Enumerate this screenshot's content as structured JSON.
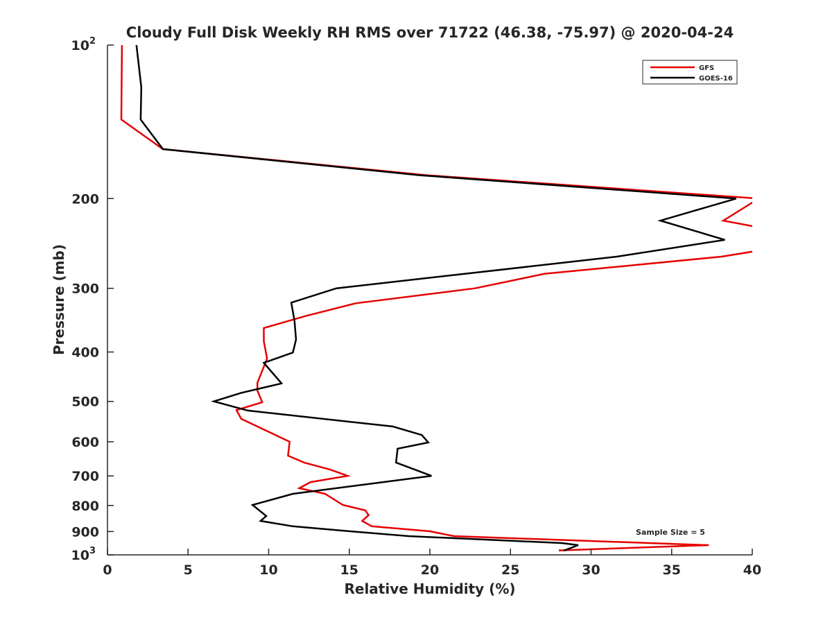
{
  "chart_data": {
    "type": "line",
    "title": "Cloudy Full Disk Weekly RH RMS over 71722 (46.38, -75.97) @ 2020-04-24",
    "xlabel": "Relative Humidity (%)",
    "ylabel": "Pressure (mb)",
    "xlim": [
      0,
      40
    ],
    "ylim": [
      100,
      1000
    ],
    "yscale": "log",
    "y_reversed": true,
    "x_ticks": [
      "0",
      "5",
      "10",
      "15",
      "20",
      "25",
      "30",
      "35",
      "40"
    ],
    "y_ticks": [
      {
        "value": 100,
        "label": "10",
        "sup": "2"
      },
      {
        "value": 200,
        "label": "200"
      },
      {
        "value": 300,
        "label": "300"
      },
      {
        "value": 400,
        "label": "400"
      },
      {
        "value": 500,
        "label": "500"
      },
      {
        "value": 600,
        "label": "600"
      },
      {
        "value": 700,
        "label": "700"
      },
      {
        "value": 800,
        "label": "800"
      },
      {
        "value": 900,
        "label": "900"
      },
      {
        "value": 1000,
        "label": "10",
        "sup": "3"
      }
    ],
    "legend": {
      "placement": "top-right"
    },
    "annotation": "Sample Size = 5",
    "series": [
      {
        "name": "GFS",
        "color": "#e60000",
        "points": [
          [
            0.9,
            100
          ],
          [
            0.86,
            140
          ],
          [
            3.44,
            160
          ],
          [
            19.8,
            180
          ],
          [
            40.4,
            200
          ],
          [
            38.2,
            221
          ],
          [
            44.5,
            241
          ],
          [
            38.1,
            260
          ],
          [
            27.1,
            281
          ],
          [
            22.8,
            300
          ],
          [
            15.4,
            321
          ],
          [
            12.3,
            340
          ],
          [
            9.7,
            359
          ],
          [
            9.7,
            381
          ],
          [
            9.9,
            412
          ],
          [
            9.3,
            460
          ],
          [
            9.3,
            476
          ],
          [
            9.6,
            502
          ],
          [
            8.0,
            520
          ],
          [
            8.3,
            541
          ],
          [
            11.3,
            600
          ],
          [
            11.2,
            639
          ],
          [
            12.2,
            659
          ],
          [
            13.8,
            680
          ],
          [
            14.9,
            700
          ],
          [
            12.6,
            720
          ],
          [
            11.9,
            740
          ],
          [
            13.5,
            759
          ],
          [
            14.6,
            798
          ],
          [
            16.0,
            818
          ],
          [
            16.2,
            836
          ],
          [
            15.8,
            858
          ],
          [
            16.4,
            879
          ],
          [
            20.0,
            899
          ],
          [
            21.5,
            919
          ],
          [
            37.3,
            957
          ],
          [
            28.0,
            980
          ]
        ]
      },
      {
        "name": "GOES-16",
        "color": "#000000",
        "points": [
          [
            1.8,
            100
          ],
          [
            2.1,
            121
          ],
          [
            2.06,
            140
          ],
          [
            3.44,
            160
          ],
          [
            19.35,
            180
          ],
          [
            39.0,
            200
          ],
          [
            34.3,
            221
          ],
          [
            38.3,
            241
          ],
          [
            31.6,
            260
          ],
          [
            14.2,
            300
          ],
          [
            11.4,
            320
          ],
          [
            11.6,
            347
          ],
          [
            11.7,
            378
          ],
          [
            11.5,
            401
          ],
          [
            9.7,
            420
          ],
          [
            10.8,
            461
          ],
          [
            8.3,
            481
          ],
          [
            6.6,
            500
          ],
          [
            8.7,
            521
          ],
          [
            17.7,
            560
          ],
          [
            19.5,
            582
          ],
          [
            19.9,
            602
          ],
          [
            18.0,
            619
          ],
          [
            17.9,
            659
          ],
          [
            20.1,
            700
          ],
          [
            11.5,
            759
          ],
          [
            9.0,
            798
          ],
          [
            9.85,
            839
          ],
          [
            9.5,
            858
          ],
          [
            11.5,
            879
          ],
          [
            15.05,
            899
          ],
          [
            18.7,
            919
          ],
          [
            28.2,
            948
          ],
          [
            29.2,
            957
          ],
          [
            28.3,
            981
          ]
        ]
      }
    ]
  }
}
